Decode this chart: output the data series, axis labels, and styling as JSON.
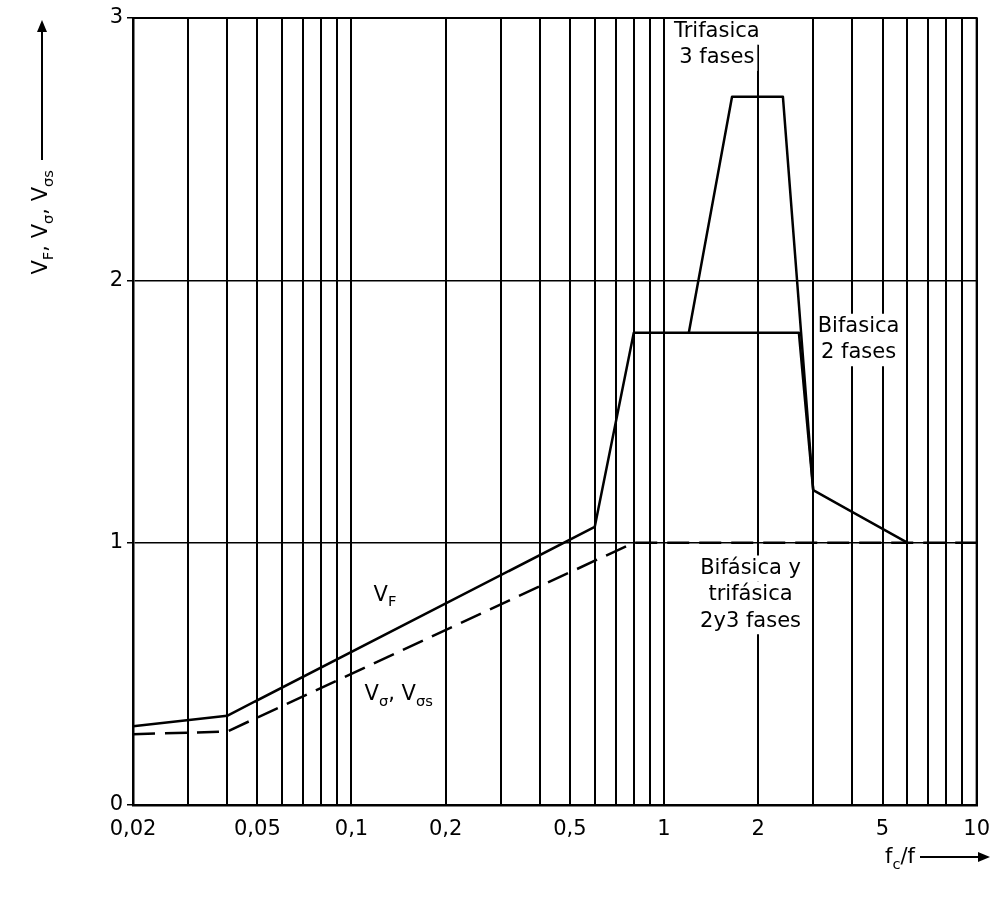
{
  "chart_data": {
    "type": "line",
    "xlabel": "f$_{c}$/f",
    "ylabel": "V$_{F}$, V$_{σ}$, V$_{σs}$",
    "log": "x",
    "grid": true,
    "legend": false,
    "marker": "none",
    "xlim": [
      0.02,
      10
    ],
    "ylim": [
      0,
      3
    ],
    "xticks": [
      {
        "value": 0.02,
        "label": "0,02"
      },
      {
        "value": 0.03,
        "label": null
      },
      {
        "value": 0.04,
        "label": null
      },
      {
        "value": 0.05,
        "label": "0,05"
      },
      {
        "value": 0.06,
        "label": null
      },
      {
        "value": 0.07,
        "label": null
      },
      {
        "value": 0.08,
        "label": null
      },
      {
        "value": 0.09,
        "label": null
      },
      {
        "value": 0.1,
        "label": "0,1"
      },
      {
        "value": 0.2,
        "label": "0,2"
      },
      {
        "value": 0.3,
        "label": null
      },
      {
        "value": 0.4,
        "label": null
      },
      {
        "value": 0.5,
        "label": "0,5"
      },
      {
        "value": 0.6,
        "label": null
      },
      {
        "value": 0.7,
        "label": null
      },
      {
        "value": 0.8,
        "label": null
      },
      {
        "value": 0.9,
        "label": null
      },
      1,
      2,
      {
        "value": 3,
        "label": null
      },
      {
        "value": 4,
        "label": null
      },
      5,
      {
        "value": 6,
        "label": null
      },
      {
        "value": 7,
        "label": null
      },
      {
        "value": 8,
        "label": null
      },
      {
        "value": 9,
        "label": null
      },
      10
    ],
    "yticks": [
      0,
      1,
      2,
      3
    ],
    "series": [
      {
        "color": "#000000",
        "line_style": "solid",
        "x": [
          0.02,
          0.04,
          0.6,
          0.8,
          2.7,
          3,
          6
        ],
        "values": [
          0.3,
          0.34,
          1.06,
          1.8,
          1.8,
          1.2,
          1.0
        ]
      },
      {
        "color": "#000000",
        "line_style": "solid",
        "x": [
          1.2,
          1.65,
          2.4,
          3
        ],
        "values": [
          1.8,
          2.7,
          2.7,
          1.2
        ]
      },
      {
        "color": "#000000",
        "line_style": "dashed",
        "x": [
          0.02,
          0.04,
          0.8,
          10
        ],
        "values": [
          0.27,
          0.28,
          1.0,
          1.0
        ]
      }
    ],
    "annotations": [
      "Trifasica\n3 fases",
      "Bifasica\n2 fases",
      "Bifásica y\ntrifásica\n2y3 fases",
      {
        "text": "V$_{F}$",
        "x": 0.128,
        "y": 0.8
      },
      "V$_{σ}$, V$_{σs}$"
    ]
  }
}
